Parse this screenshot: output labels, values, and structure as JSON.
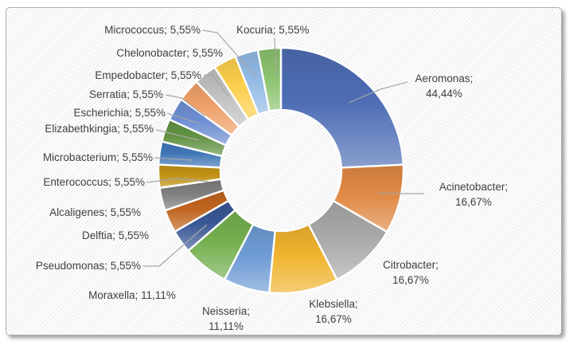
{
  "chart_data": {
    "type": "pie",
    "subtype": "doughnut",
    "title": "",
    "legend": "none",
    "start_angle_deg": 0,
    "direction": "clockwise",
    "doughnut_hole_ratio": 0.49,
    "value_suffix": "%",
    "decimal_separator": ",",
    "label_pattern": "name; value%",
    "slices": [
      {
        "label": "Aeromonas",
        "value": 44.44,
        "display": "44,44%",
        "color": "#4E6DB5"
      },
      {
        "label": "Acinetobacter",
        "value": 16.67,
        "display": "16,67%",
        "color": "#E08945"
      },
      {
        "label": "Citrobacter",
        "value": 16.67,
        "display": "16,67%",
        "color": "#A8A8A8"
      },
      {
        "label": "Klebsiella",
        "value": 16.67,
        "display": "16,67%",
        "color": "#F0B32F"
      },
      {
        "label": "Neisseria",
        "value": 11.11,
        "display": "11,11%",
        "color": "#6D9BD4"
      },
      {
        "label": "Moraxella",
        "value": 11.11,
        "display": "11,11%",
        "color": "#74AF4F"
      },
      {
        "label": "Pseudomonas",
        "value": 5.55,
        "display": "5,55%",
        "color": "#3A5795"
      },
      {
        "label": "Delftia",
        "value": 5.55,
        "display": "5,55%",
        "color": "#BF641F"
      },
      {
        "label": "Alcaligenes",
        "value": 5.55,
        "display": "5,55%",
        "color": "#7E7E7E"
      },
      {
        "label": "Enterococcus",
        "value": 5.55,
        "display": "5,55%",
        "color": "#C09113"
      },
      {
        "label": "Microbacterium",
        "value": 5.55,
        "display": "5,55%",
        "color": "#4076B6"
      },
      {
        "label": "Elizabethkingia",
        "value": 5.55,
        "display": "5,55%",
        "color": "#619243"
      },
      {
        "label": "Escherichia",
        "value": 5.55,
        "display": "5,55%",
        "color": "#6D8DD2"
      },
      {
        "label": "Serratia",
        "value": 5.55,
        "display": "5,55%",
        "color": "#EFA069"
      },
      {
        "label": "Empedobacter",
        "value": 5.55,
        "display": "5,55%",
        "color": "#C0C0C0"
      },
      {
        "label": "Chelonobacter",
        "value": 5.55,
        "display": "5,55%",
        "color": "#FCCE4C"
      },
      {
        "label": "Micrococcus",
        "value": 5.55,
        "display": "5,55%",
        "color": "#92BAE5"
      },
      {
        "label": "Kocuria",
        "value": 5.55,
        "display": "5,55%",
        "color": "#8BC26E"
      }
    ],
    "style": {
      "slice_border_color": "#FFFFFF",
      "label_color": "#404040",
      "leader_line_color": "#A6A6A6",
      "background_pattern": "diagonal-hatch",
      "hatch_line_color": "#E9E9E9",
      "frame_border_color": "#AEAEAE"
    }
  }
}
